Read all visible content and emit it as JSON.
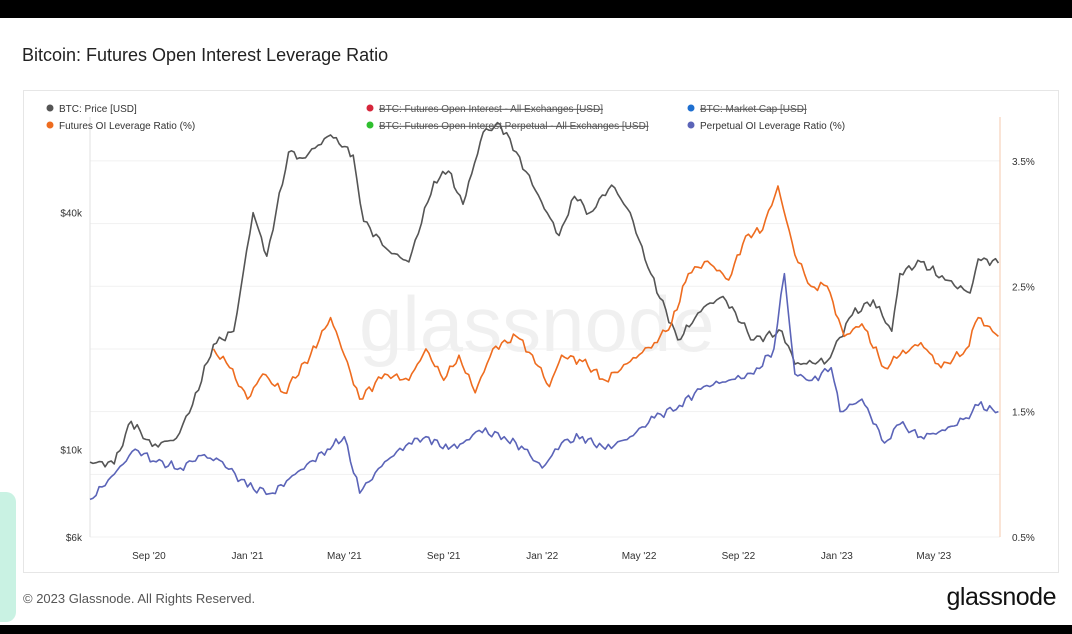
{
  "page": {
    "title": "Bitcoin: Futures Open Interest Leverage Ratio",
    "footer": "© 2023 Glassnode. All Rights Reserved.",
    "brand": "glassnode",
    "watermark": "glassnode"
  },
  "chart_data": {
    "type": "line",
    "title": "Bitcoin: Futures Open Interest Leverage Ratio",
    "legend": [
      {
        "name": "BTC: Price [USD]",
        "color": "#555555",
        "enabled": true
      },
      {
        "name": "BTC: Futures Open Interest - All Exchanges [USD]",
        "color": "#d6263b",
        "enabled": false
      },
      {
        "name": "BTC: Market Cap [USD]",
        "color": "#1e6fd0",
        "enabled": false
      },
      {
        "name": "Futures OI Leverage Ratio (%)",
        "color": "#ee6c1f",
        "enabled": true
      },
      {
        "name": "BTC: Futures Open Interest Perpetual - All Exchanges [USD]",
        "color": "#2fbf2f",
        "enabled": false
      },
      {
        "name": "Perpetual OI Leverage Ratio (%)",
        "color": "#5b64b8",
        "enabled": true
      }
    ],
    "x_ticks": [
      "Sep '20",
      "Jan '21",
      "May '21",
      "Sep '21",
      "Jan '22",
      "May '22",
      "Sep '22",
      "Jan '23",
      "May '23"
    ],
    "y_left": {
      "scale": "log",
      "ticks": [
        "$6k",
        "$10k",
        "$40k"
      ],
      "tick_values": [
        6000,
        10000,
        40000
      ],
      "range": [
        6000,
        70000
      ]
    },
    "y_right": {
      "scale": "linear",
      "ticks": [
        "0.5%",
        "1.5%",
        "2.5%",
        "3.5%"
      ],
      "tick_values": [
        0.5,
        1.5,
        2.5,
        3.5
      ],
      "range": [
        0.5,
        3.85
      ]
    },
    "series": [
      {
        "name": "BTC: Price [USD]",
        "axis": "left",
        "color": "#555555",
        "points": [
          [
            "2020-06-20",
            9300
          ],
          [
            "2020-07-20",
            9200
          ],
          [
            "2020-08-10",
            11800
          ],
          [
            "2020-09-05",
            10200
          ],
          [
            "2020-10-05",
            10700
          ],
          [
            "2020-10-25",
            13000
          ],
          [
            "2020-11-20",
            18500
          ],
          [
            "2020-12-15",
            20000
          ],
          [
            "2021-01-08",
            40000
          ],
          [
            "2021-01-25",
            31000
          ],
          [
            "2021-02-21",
            57000
          ],
          [
            "2021-03-10",
            55000
          ],
          [
            "2021-04-14",
            63000
          ],
          [
            "2021-05-12",
            56000
          ],
          [
            "2021-05-25",
            38000
          ],
          [
            "2021-06-25",
            32000
          ],
          [
            "2021-07-20",
            30000
          ],
          [
            "2021-08-20",
            48000
          ],
          [
            "2021-09-07",
            51000
          ],
          [
            "2021-09-25",
            42000
          ],
          [
            "2021-10-20",
            64000
          ],
          [
            "2021-11-10",
            67000
          ],
          [
            "2021-11-30",
            57000
          ],
          [
            "2021-12-20",
            47000
          ],
          [
            "2022-01-22",
            35000
          ],
          [
            "2022-02-10",
            44000
          ],
          [
            "2022-03-01",
            40000
          ],
          [
            "2022-03-28",
            47000
          ],
          [
            "2022-04-20",
            40000
          ],
          [
            "2022-05-12",
            29000
          ],
          [
            "2022-06-18",
            19000
          ],
          [
            "2022-07-20",
            23000
          ],
          [
            "2022-08-13",
            24500
          ],
          [
            "2022-09-20",
            19000
          ],
          [
            "2022-10-25",
            20000
          ],
          [
            "2022-11-10",
            16500
          ],
          [
            "2022-12-20",
            16800
          ],
          [
            "2023-01-20",
            22000
          ],
          [
            "2023-02-15",
            24000
          ],
          [
            "2023-03-10",
            20000
          ],
          [
            "2023-03-20",
            28000
          ],
          [
            "2023-04-15",
            30000
          ],
          [
            "2023-05-15",
            27000
          ],
          [
            "2023-06-15",
            25000
          ],
          [
            "2023-06-25",
            30500
          ],
          [
            "2023-07-20",
            29800
          ]
        ]
      },
      {
        "name": "Futures OI Leverage Ratio (%)",
        "axis": "right",
        "color": "#ee6c1f",
        "points": [
          [
            "2020-11-20",
            2.0
          ],
          [
            "2020-12-10",
            1.85
          ],
          [
            "2021-01-01",
            1.6
          ],
          [
            "2021-01-20",
            1.8
          ],
          [
            "2021-02-15",
            1.65
          ],
          [
            "2021-03-20",
            1.95
          ],
          [
            "2021-04-14",
            2.25
          ],
          [
            "2021-05-01",
            1.95
          ],
          [
            "2021-05-20",
            1.6
          ],
          [
            "2021-06-20",
            1.8
          ],
          [
            "2021-07-20",
            1.75
          ],
          [
            "2021-08-10",
            2.0
          ],
          [
            "2021-09-01",
            1.75
          ],
          [
            "2021-09-20",
            1.95
          ],
          [
            "2021-10-10",
            1.65
          ],
          [
            "2021-11-01",
            2.0
          ],
          [
            "2021-11-30",
            2.1
          ],
          [
            "2021-12-20",
            1.95
          ],
          [
            "2022-01-10",
            1.7
          ],
          [
            "2022-01-25",
            1.95
          ],
          [
            "2022-02-20",
            1.9
          ],
          [
            "2022-03-20",
            1.75
          ],
          [
            "2022-04-20",
            1.9
          ],
          [
            "2022-05-20",
            2.05
          ],
          [
            "2022-06-10",
            2.2
          ],
          [
            "2022-07-01",
            2.6
          ],
          [
            "2022-07-25",
            2.7
          ],
          [
            "2022-08-20",
            2.55
          ],
          [
            "2022-09-10",
            2.9
          ],
          [
            "2022-10-01",
            2.95
          ],
          [
            "2022-10-20",
            3.3
          ],
          [
            "2022-11-10",
            2.75
          ],
          [
            "2022-11-30",
            2.5
          ],
          [
            "2022-12-20",
            2.5
          ],
          [
            "2023-01-10",
            2.1
          ],
          [
            "2023-02-01",
            2.2
          ],
          [
            "2023-03-01",
            1.85
          ],
          [
            "2023-03-20",
            1.95
          ],
          [
            "2023-04-15",
            2.05
          ],
          [
            "2023-05-10",
            1.85
          ],
          [
            "2023-06-10",
            2.0
          ],
          [
            "2023-06-25",
            2.25
          ],
          [
            "2023-07-20",
            2.1
          ]
        ]
      },
      {
        "name": "Perpetual OI Leverage Ratio (%)",
        "axis": "right",
        "color": "#5b64b8",
        "points": [
          [
            "2020-06-20",
            0.8
          ],
          [
            "2020-07-20",
            1.0
          ],
          [
            "2020-08-15",
            1.2
          ],
          [
            "2020-09-10",
            1.1
          ],
          [
            "2020-10-10",
            1.05
          ],
          [
            "2020-11-05",
            1.15
          ],
          [
            "2020-12-01",
            1.1
          ],
          [
            "2021-01-01",
            0.9
          ],
          [
            "2021-02-01",
            0.85
          ],
          [
            "2021-03-01",
            1.0
          ],
          [
            "2021-04-10",
            1.2
          ],
          [
            "2021-05-01",
            1.3
          ],
          [
            "2021-05-20",
            0.85
          ],
          [
            "2021-06-20",
            1.1
          ],
          [
            "2021-07-20",
            1.25
          ],
          [
            "2021-08-10",
            1.3
          ],
          [
            "2021-09-07",
            1.2
          ],
          [
            "2021-09-25",
            1.25
          ],
          [
            "2021-10-15",
            1.35
          ],
          [
            "2021-11-15",
            1.3
          ],
          [
            "2021-12-10",
            1.2
          ],
          [
            "2022-01-01",
            1.05
          ],
          [
            "2022-01-25",
            1.25
          ],
          [
            "2022-02-20",
            1.3
          ],
          [
            "2022-03-20",
            1.2
          ],
          [
            "2022-04-20",
            1.3
          ],
          [
            "2022-05-20",
            1.45
          ],
          [
            "2022-06-20",
            1.55
          ],
          [
            "2022-07-20",
            1.7
          ],
          [
            "2022-08-20",
            1.75
          ],
          [
            "2022-09-20",
            1.8
          ],
          [
            "2022-10-15",
            2.0
          ],
          [
            "2022-10-28",
            2.6
          ],
          [
            "2022-11-10",
            1.8
          ],
          [
            "2022-12-01",
            1.75
          ],
          [
            "2022-12-25",
            1.85
          ],
          [
            "2023-01-05",
            1.5
          ],
          [
            "2023-02-01",
            1.6
          ],
          [
            "2023-03-01",
            1.25
          ],
          [
            "2023-03-20",
            1.4
          ],
          [
            "2023-04-15",
            1.3
          ],
          [
            "2023-05-15",
            1.35
          ],
          [
            "2023-06-10",
            1.45
          ],
          [
            "2023-06-25",
            1.55
          ],
          [
            "2023-07-20",
            1.5
          ]
        ]
      }
    ]
  }
}
